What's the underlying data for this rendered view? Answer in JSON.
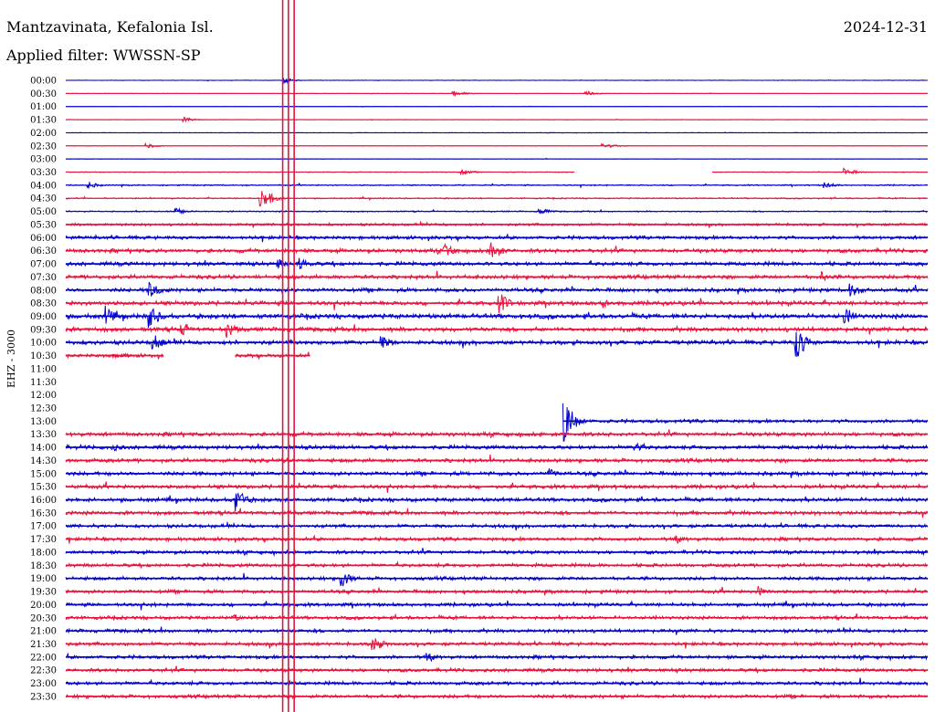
{
  "header": {
    "station": "Mantzavinata, Kefalonia Isl.",
    "filter": "Applied filter: WWSSN-SP",
    "date": "2024-12-31",
    "channel": "EHZ - 3000"
  },
  "chart_data": {
    "type": "line",
    "title": "Mantzavinata, Kefalonia Isl.",
    "ylabel": "EHZ - 3000",
    "x_unit": "minutes within row",
    "x_range": [
      0,
      30
    ],
    "colors": {
      "even_rows": "#0000cc",
      "odd_rows": "#e8123c",
      "markers": "#e8123c"
    },
    "rows": [
      "00:00",
      "00:30",
      "01:00",
      "01:30",
      "02:00",
      "02:30",
      "03:00",
      "03:30",
      "04:00",
      "04:30",
      "05:00",
      "05:30",
      "06:00",
      "06:30",
      "07:00",
      "07:30",
      "08:00",
      "08:30",
      "09:00",
      "09:30",
      "10:00",
      "10:30",
      "11:00",
      "11:30",
      "12:00",
      "12:30",
      "13:00",
      "13:30",
      "14:00",
      "14:30",
      "15:00",
      "15:30",
      "16:00",
      "16:30",
      "17:00",
      "17:30",
      "18:00",
      "18:30",
      "19:00",
      "19:30",
      "20:00",
      "20:30",
      "21:00",
      "21:30",
      "22:00",
      "22:30",
      "23:00",
      "23:30"
    ],
    "noise_level": [
      0.2,
      0.2,
      0.2,
      0.2,
      0.2,
      0.2,
      0.2,
      0.3,
      0.6,
      0.6,
      0.6,
      1.2,
      1.6,
      1.8,
      1.8,
      1.8,
      1.8,
      2.0,
      2.2,
      2.0,
      2.0,
      1.6,
      0,
      0,
      0,
      0,
      1.6,
      1.8,
      1.8,
      1.8,
      1.8,
      1.8,
      1.8,
      1.8,
      1.6,
      1.6,
      1.6,
      1.6,
      1.6,
      1.6,
      1.6,
      1.6,
      1.6,
      1.6,
      1.6,
      1.6,
      1.6,
      1.6
    ],
    "data_segments": {
      "03:30": [
        [
          0,
          17.7
        ],
        [
          22.5,
          30
        ]
      ],
      "10:30": [
        [
          0,
          2.3
        ],
        [
          1.5,
          3.4
        ],
        [
          5.9,
          8.5
        ]
      ],
      "13:00": [
        [
          17.3,
          30
        ]
      ]
    },
    "events": [
      {
        "row": "00:00",
        "t": 7.6,
        "amp": 3
      },
      {
        "row": "00:30",
        "t": 13.5,
        "amp": 3
      },
      {
        "row": "00:30",
        "t": 18.1,
        "amp": 3
      },
      {
        "row": "01:30",
        "t": 4.1,
        "amp": 3
      },
      {
        "row": "02:30",
        "t": 2.8,
        "amp": 3
      },
      {
        "row": "02:30",
        "t": 18.7,
        "amp": 4
      },
      {
        "row": "03:30",
        "t": 13.8,
        "amp": 3
      },
      {
        "row": "03:30",
        "t": 27.1,
        "amp": 5
      },
      {
        "row": "04:00",
        "t": 0.8,
        "amp": 4
      },
      {
        "row": "04:00",
        "t": 26.4,
        "amp": 4
      },
      {
        "row": "04:30",
        "t": 6.8,
        "amp": 14
      },
      {
        "row": "05:00",
        "t": 3.8,
        "amp": 5
      },
      {
        "row": "05:00",
        "t": 16.5,
        "amp": 4
      },
      {
        "row": "06:30",
        "t": 13.2,
        "amp": 8
      },
      {
        "row": "06:30",
        "t": 14.8,
        "amp": 12
      },
      {
        "row": "07:00",
        "t": 8.1,
        "amp": 8
      },
      {
        "row": "07:00",
        "t": 7.4,
        "amp": 6
      },
      {
        "row": "07:30",
        "t": 26.3,
        "amp": 6
      },
      {
        "row": "08:00",
        "t": 2.9,
        "amp": 12
      },
      {
        "row": "08:00",
        "t": 27.3,
        "amp": 10
      },
      {
        "row": "08:30",
        "t": 15.1,
        "amp": 12
      },
      {
        "row": "08:30",
        "t": 18.7,
        "amp": 6
      },
      {
        "row": "09:00",
        "t": 1.4,
        "amp": 12
      },
      {
        "row": "09:00",
        "t": 2.9,
        "amp": 14
      },
      {
        "row": "09:00",
        "t": 27.1,
        "amp": 12
      },
      {
        "row": "09:30",
        "t": 4.0,
        "amp": 8
      },
      {
        "row": "09:30",
        "t": 5.6,
        "amp": 10
      },
      {
        "row": "10:00",
        "t": 3.0,
        "amp": 12
      },
      {
        "row": "10:00",
        "t": 11.0,
        "amp": 8
      },
      {
        "row": "10:00",
        "t": 25.4,
        "amp": 22
      },
      {
        "row": "13:00",
        "t": 17.3,
        "amp": 28
      },
      {
        "row": "14:00",
        "t": 1.6,
        "amp": 6
      },
      {
        "row": "14:00",
        "t": 19.8,
        "amp": 6
      },
      {
        "row": "15:00",
        "t": 16.8,
        "amp": 6
      },
      {
        "row": "16:00",
        "t": 5.9,
        "amp": 16
      },
      {
        "row": "17:30",
        "t": 21.2,
        "amp": 6
      },
      {
        "row": "19:00",
        "t": 9.6,
        "amp": 10
      },
      {
        "row": "19:30",
        "t": 24.1,
        "amp": 6
      },
      {
        "row": "20:30",
        "t": 5.8,
        "amp": 5
      },
      {
        "row": "21:30",
        "t": 10.7,
        "amp": 10
      },
      {
        "row": "22:00",
        "t": 12.6,
        "amp": 6
      }
    ],
    "marker_lines": [
      {
        "t": 7.55,
        "from": "00:00",
        "to": "23:30"
      },
      {
        "t": 7.75,
        "from": "00:00",
        "to": "23:30"
      },
      {
        "t": 7.95,
        "from": "00:00",
        "to": "23:30"
      }
    ]
  }
}
